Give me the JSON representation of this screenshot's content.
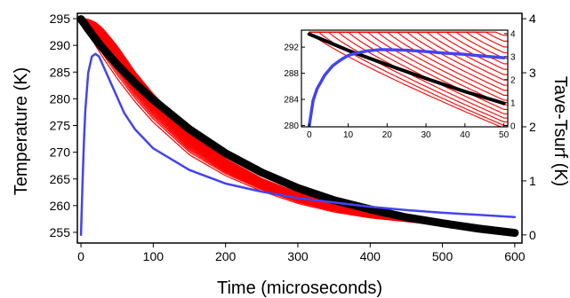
{
  "chart_data": [
    {
      "type": "line",
      "panel": "main",
      "xlabel": "Time (microseconds)",
      "ylabel": "Temperature (K)",
      "y2label": "Tave-Tsurf (K)",
      "xlim": [
        -5,
        610
      ],
      "ylim": [
        253,
        296
      ],
      "y2lim": [
        -0.15,
        4.1
      ],
      "xticks": [
        0,
        100,
        200,
        300,
        400,
        500,
        600
      ],
      "yticks": [
        255,
        260,
        265,
        270,
        275,
        280,
        285,
        290,
        295
      ],
      "y2ticks": [
        0,
        1,
        2,
        3,
        4
      ],
      "colors": {
        "temperature_family": "#ff0000",
        "average": "#000000",
        "difference": "#4444ee"
      },
      "series": [
        {
          "axis": "left",
          "x": [
            0,
            5,
            10,
            20,
            30,
            50,
            75,
            100,
            150,
            200,
            250,
            300,
            350,
            400,
            450,
            500,
            550,
            600
          ],
          "y": [
            294.8,
            293.6,
            292.4,
            290.0,
            287.8,
            283.8,
            279.4,
            275.6,
            269.5,
            265.6,
            262.7,
            260.4,
            258.8,
            257.7,
            257.0,
            256.3,
            255.7,
            255.2
          ]
        },
        {
          "axis": "left",
          "x": [
            0,
            10,
            20,
            30,
            50,
            75,
            100,
            150,
            200,
            250,
            300,
            350,
            400,
            450,
            500,
            550,
            600
          ],
          "y": [
            295.0,
            294.9,
            294.3,
            293.2,
            289.9,
            285.0,
            280.9,
            273.9,
            268.8,
            265.1,
            262.4,
            260.4,
            258.8,
            257.6,
            256.6,
            255.7,
            255.0
          ]
        },
        {
          "axis": "left",
          "x": [
            0,
            5,
            10,
            20,
            30,
            50,
            75,
            100,
            150,
            200,
            250,
            300,
            350,
            400,
            450,
            500,
            550,
            600
          ],
          "y": [
            294.9,
            294.0,
            293.0,
            291.2,
            289.5,
            286.4,
            282.9,
            279.8,
            274.3,
            269.8,
            266.2,
            263.3,
            261.0,
            259.3,
            257.8,
            256.7,
            255.7,
            254.9
          ]
        },
        {
          "axis": "right",
          "x": [
            0,
            2,
            4,
            6,
            10,
            15,
            20,
            25,
            30,
            40,
            50,
            60,
            75,
            100,
            150,
            200,
            250,
            300,
            350,
            400,
            450,
            500,
            550,
            600
          ],
          "y": [
            0.0,
            0.9,
            1.7,
            2.3,
            3.0,
            3.3,
            3.35,
            3.3,
            3.15,
            2.85,
            2.55,
            2.25,
            1.95,
            1.6,
            1.2,
            0.95,
            0.8,
            0.68,
            0.6,
            0.52,
            0.46,
            0.41,
            0.37,
            0.33
          ]
        }
      ]
    },
    {
      "type": "line",
      "panel": "inset",
      "xlim": [
        -2,
        51
      ],
      "ylim": [
        279.8,
        294.6
      ],
      "y2lim": [
        -0.05,
        4.15
      ],
      "xticks": [
        0,
        10,
        20,
        30,
        40,
        50
      ],
      "yticks": [
        280,
        284,
        288,
        292
      ],
      "y2ticks": [
        0,
        1,
        2,
        3,
        4
      ],
      "series": [
        {
          "axis": "left",
          "x": [
            0,
            10,
            20,
            30,
            40,
            50
          ],
          "y": [
            294.0,
            291.5,
            289.3,
            287.2,
            285.2,
            283.4
          ]
        },
        {
          "axis": "right",
          "x": [
            0,
            1,
            2,
            4,
            6,
            8,
            10,
            12,
            15,
            18,
            20,
            25,
            30,
            35,
            40,
            45,
            50
          ],
          "y": [
            0.0,
            1.1,
            1.6,
            2.2,
            2.6,
            2.85,
            3.05,
            3.15,
            3.25,
            3.3,
            3.3,
            3.28,
            3.22,
            3.15,
            3.1,
            3.02,
            2.95
          ]
        }
      ]
    }
  ]
}
